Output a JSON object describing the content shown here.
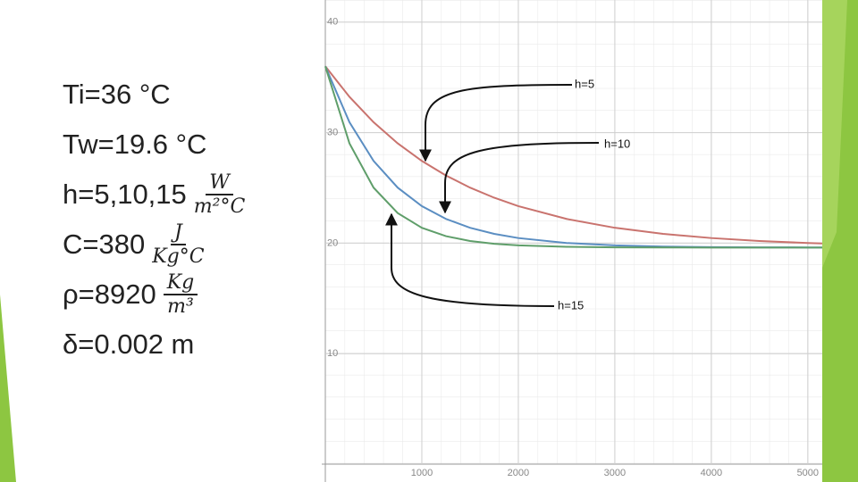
{
  "parameters": [
    {
      "text": "Ti=36 °C"
    },
    {
      "text": "Tw=19.6 °C"
    },
    {
      "text": "h=5,10,15",
      "num": "W",
      "den": "m²°C"
    },
    {
      "text": "C=380",
      "num": "J",
      "den": "Kg°C"
    },
    {
      "text": "ρ=8920",
      "num": "Kg",
      "den": "m³"
    },
    {
      "text": "δ=0.002 m"
    }
  ],
  "chart_data": {
    "type": "line",
    "x": [
      0,
      250,
      500,
      750,
      1000,
      1250,
      1500,
      1750,
      2000,
      2500,
      3000,
      3500,
      4000,
      4500,
      5000,
      5150
    ],
    "series": [
      {
        "name": "h=5",
        "color": "#c9736e",
        "values": [
          36,
          33.24,
          30.94,
          29.03,
          27.44,
          26.12,
          25.02,
          24.11,
          23.35,
          22.19,
          21.39,
          20.84,
          20.46,
          20.19,
          20.01,
          19.97
        ]
      },
      {
        "name": "h=10",
        "color": "#5b8ec2",
        "values": [
          36,
          30.94,
          27.44,
          25.02,
          23.35,
          22.19,
          21.39,
          20.84,
          20.46,
          20.01,
          19.8,
          19.69,
          19.64,
          19.62,
          19.61,
          19.61
        ]
      },
      {
        "name": "h=15",
        "color": "#5f9e6a",
        "values": [
          36,
          29.03,
          25.02,
          22.72,
          21.39,
          20.63,
          20.19,
          19.94,
          19.8,
          19.67,
          19.62,
          19.61,
          19.6,
          19.6,
          19.6,
          19.6
        ]
      }
    ],
    "xlim": [
      0,
      5150
    ],
    "ylim": [
      0,
      42
    ],
    "xticks": [
      1000,
      2000,
      3000,
      4000,
      5000
    ],
    "yticks": [
      10,
      20,
      30,
      40
    ],
    "grid": true
  }
}
